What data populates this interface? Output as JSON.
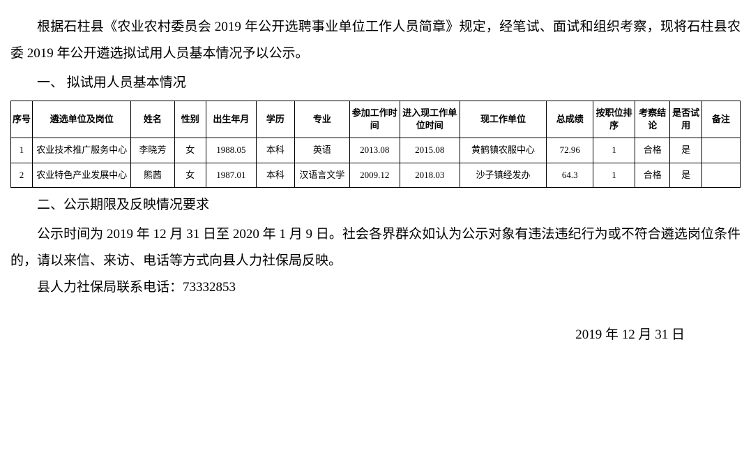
{
  "paragraphs": {
    "intro": "根据石柱县《农业农村委员会 2019 年公开选聘事业单位工作人员简章》规定，经笔试、面试和组织考察，现将石柱县农委 2019 年公开遴选拟试用人员基本情况予以公示。",
    "section1_heading": "一、 拟试用人员基本情况",
    "section2_heading": "二、公示期限及反映情况要求",
    "publicity_period": "公示时间为 2019 年 12 月 31 日至 2020 年 1 月 9 日。社会各界群众如认为公示对象有违法违纪行为或不符合遴选岗位条件的，请以来信、来访、电话等方式向县人力社保局反映。",
    "contact": "县人力社保局联系电话：73332853",
    "date": "2019 年 12 月 31 日"
  },
  "table": {
    "headers": {
      "seq": "序号",
      "unit": "遴选单位及岗位",
      "name": "姓名",
      "gender": "性别",
      "birth": "出生年月",
      "edu": "学历",
      "major": "专业",
      "worktime": "参加工作时间",
      "currenttime": "进入现工作单位时间",
      "currentunit": "现工作单位",
      "score": "总成绩",
      "rank": "按职位排序",
      "review": "考察结论",
      "trial": "是否试用",
      "remark": "备注"
    },
    "rows": [
      {
        "seq": "1",
        "unit": "农业技术推广服务中心",
        "name": "李晓芳",
        "gender": "女",
        "birth": "1988.05",
        "edu": "本科",
        "major": "英语",
        "worktime": "2013.08",
        "currenttime": "2015.08",
        "currentunit": "黄鹤镇农服中心",
        "score": "72.96",
        "rank": "1",
        "review": "合格",
        "trial": "是",
        "remark": ""
      },
      {
        "seq": "2",
        "unit": "农业特色产业发展中心",
        "name": "熊茜",
        "gender": "女",
        "birth": "1987.01",
        "edu": "本科",
        "major": "汉语言文学",
        "worktime": "2009.12",
        "currenttime": "2018.03",
        "currentunit": "沙子镇经发办",
        "score": "64.3",
        "rank": "1",
        "review": "合格",
        "trial": "是",
        "remark": ""
      }
    ]
  },
  "styling": {
    "body_font_size": 19,
    "table_font_size": 13,
    "text_color": "#000000",
    "background_color": "#ffffff",
    "border_color": "#000000",
    "line_height": 2.0
  }
}
